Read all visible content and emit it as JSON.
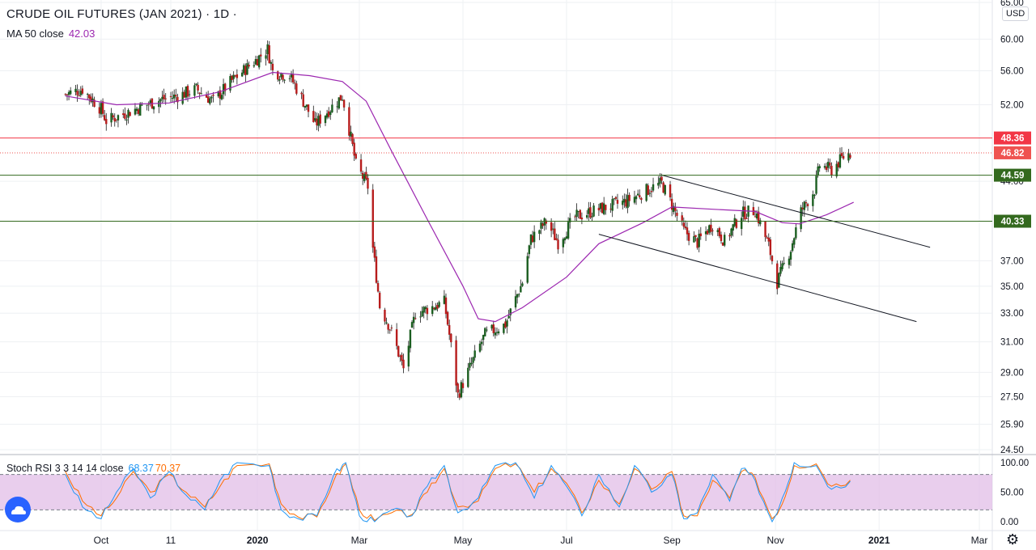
{
  "header": {
    "symbol_title": "CRUDE OIL FUTURES (JAN 2021)",
    "interval": "1D",
    "ma_label": "MA 50 close",
    "ma_value": "42.03",
    "rsi_label": "Stoch RSI 3 3 14 14 close",
    "rsi_k": "68.37",
    "rsi_d": "70.37",
    "currency": "USD"
  },
  "chart_data": [
    {
      "type": "candlestick",
      "x_tick_labels": [
        "Oct",
        "11",
        "2020",
        "Mar",
        "May",
        "Jul",
        "Sep",
        "Nov",
        "2021",
        "Mar"
      ],
      "y_tick_labels": [
        "65.00",
        "60.00",
        "56.00",
        "52.00",
        "44.00",
        "37.00",
        "35.00",
        "33.00",
        "31.00",
        "29.00",
        "27.50",
        "25.90",
        "24.50"
      ],
      "ylim": [
        24.5,
        65.0
      ],
      "scale": "log",
      "price_levels": [
        {
          "label": "48.36",
          "value": 48.36,
          "color": "#f23645",
          "style": "solid"
        },
        {
          "label": "46.82",
          "value": 46.82,
          "color": "#ef5350",
          "style": "dotted"
        },
        {
          "label": "44.59",
          "value": 44.59,
          "color": "#33691e",
          "style": "solid"
        },
        {
          "label": "40.33",
          "value": 40.33,
          "color": "#33691e",
          "style": "solid"
        }
      ],
      "close_path": [
        [
          "2019-09-10",
          53.2
        ],
        [
          "2019-09-20",
          53.8
        ],
        [
          "2019-10-01",
          51.5
        ],
        [
          "2019-10-04",
          50.2
        ],
        [
          "2019-10-15",
          51.0
        ],
        [
          "2019-10-25",
          51.8
        ],
        [
          "2019-11-05",
          52.6
        ],
        [
          "2019-11-15",
          53.0
        ],
        [
          "2019-11-26",
          53.8
        ],
        [
          "2019-12-06",
          52.4
        ],
        [
          "2019-12-16",
          54.6
        ],
        [
          "2019-12-31",
          57.3
        ],
        [
          "2020-01-07",
          58.7
        ],
        [
          "2020-01-10",
          55.9
        ],
        [
          "2020-01-20",
          55.4
        ],
        [
          "2020-01-28",
          52.4
        ],
        [
          "2020-02-04",
          49.8
        ],
        [
          "2020-02-14",
          51.8
        ],
        [
          "2020-02-20",
          53.0
        ],
        [
          "2020-02-28",
          45.6
        ],
        [
          "2020-03-06",
          43.5
        ],
        [
          "2020-03-09",
          38.0
        ],
        [
          "2020-03-13",
          33.5
        ],
        [
          "2020-03-19",
          32.0
        ],
        [
          "2020-03-27",
          29.2
        ],
        [
          "2020-04-03",
          33.0
        ],
        [
          "2020-04-14",
          33.5
        ],
        [
          "2020-04-20",
          33.8
        ],
        [
          "2020-04-28",
          27.6
        ],
        [
          "2020-05-05",
          29.3
        ],
        [
          "2020-05-14",
          31.5
        ],
        [
          "2020-05-26",
          32.2
        ],
        [
          "2020-06-05",
          35.3
        ],
        [
          "2020-06-10",
          38.8
        ],
        [
          "2020-06-19",
          40.3
        ],
        [
          "2020-06-26",
          38.5
        ],
        [
          "2020-07-06",
          40.7
        ],
        [
          "2020-07-20",
          41.4
        ],
        [
          "2020-08-05",
          42.1
        ],
        [
          "2020-08-19",
          43.3
        ],
        [
          "2020-08-26",
          43.8
        ],
        [
          "2020-09-08",
          39.5
        ],
        [
          "2020-09-16",
          38.5
        ],
        [
          "2020-09-25",
          40.1
        ],
        [
          "2020-10-02",
          38.6
        ],
        [
          "2020-10-12",
          41.0
        ],
        [
          "2020-10-20",
          41.3
        ],
        [
          "2020-10-28",
          38.2
        ],
        [
          "2020-11-02",
          35.3
        ],
        [
          "2020-11-10",
          38.0
        ],
        [
          "2020-11-16",
          41.2
        ],
        [
          "2020-11-24",
          43.2
        ],
        [
          "2020-11-27",
          45.6
        ],
        [
          "2020-12-04",
          45.1
        ],
        [
          "2020-12-11",
          46.4
        ],
        [
          "2020-12-15",
          46.8
        ]
      ],
      "ma50_path": [
        [
          "2019-09-10",
          53.0
        ],
        [
          "2019-10-10",
          52.0
        ],
        [
          "2019-11-10",
          52.2
        ],
        [
          "2019-12-10",
          53.5
        ],
        [
          "2020-01-10",
          55.8
        ],
        [
          "2020-02-01",
          55.4
        ],
        [
          "2020-02-20",
          54.7
        ],
        [
          "2020-03-05",
          52.4
        ],
        [
          "2020-03-20",
          47.0
        ],
        [
          "2020-04-10",
          40.5
        ],
        [
          "2020-05-01",
          35.0
        ],
        [
          "2020-05-10",
          32.6
        ],
        [
          "2020-05-20",
          32.4
        ],
        [
          "2020-06-05",
          33.4
        ],
        [
          "2020-07-01",
          35.7
        ],
        [
          "2020-07-20",
          38.4
        ],
        [
          "2020-08-15",
          40.2
        ],
        [
          "2020-09-01",
          41.6
        ],
        [
          "2020-09-25",
          41.4
        ],
        [
          "2020-10-20",
          41.2
        ],
        [
          "2020-11-05",
          40.2
        ],
        [
          "2020-11-15",
          40.1
        ],
        [
          "2020-12-01",
          40.9
        ],
        [
          "2020-12-17",
          42.03
        ]
      ],
      "trendlines": [
        {
          "from": [
            "2020-08-26",
            44.6
          ],
          "to": [
            "2021-01-31",
            38.1
          ]
        },
        {
          "from": [
            "2020-07-20",
            39.2
          ],
          "to": [
            "2021-01-23",
            32.4
          ]
        }
      ]
    },
    {
      "type": "line",
      "name": "Stoch RSI 3 3 14 14 close",
      "y_tick_labels": [
        "100.00",
        "50.00",
        "0.00"
      ],
      "ylim": [
        -5,
        105
      ],
      "upper_band": 80,
      "lower_band": 20,
      "band_color": "#e1bee7",
      "k_color": "#2196f3",
      "d_color": "#ff6d00",
      "k_path": [
        [
          "2019-09-10",
          80
        ],
        [
          "2019-09-20",
          25
        ],
        [
          "2019-10-01",
          5
        ],
        [
          "2019-10-10",
          50
        ],
        [
          "2019-10-20",
          90
        ],
        [
          "2019-10-30",
          40
        ],
        [
          "2019-11-10",
          85
        ],
        [
          "2019-11-20",
          45
        ],
        [
          "2019-12-01",
          20
        ],
        [
          "2019-12-10",
          70
        ],
        [
          "2019-12-20",
          100
        ],
        [
          "2020-01-08",
          95
        ],
        [
          "2020-01-15",
          20
        ],
        [
          "2020-01-25",
          5
        ],
        [
          "2020-02-05",
          10
        ],
        [
          "2020-02-15",
          80
        ],
        [
          "2020-02-22",
          100
        ],
        [
          "2020-03-01",
          10
        ],
        [
          "2020-03-10",
          0
        ],
        [
          "2020-03-20",
          20
        ],
        [
          "2020-04-01",
          10
        ],
        [
          "2020-04-10",
          60
        ],
        [
          "2020-04-20",
          95
        ],
        [
          "2020-04-28",
          15
        ],
        [
          "2020-05-10",
          40
        ],
        [
          "2020-05-20",
          95
        ],
        [
          "2020-06-01",
          100
        ],
        [
          "2020-06-12",
          40
        ],
        [
          "2020-06-22",
          95
        ],
        [
          "2020-07-01",
          60
        ],
        [
          "2020-07-10",
          10
        ],
        [
          "2020-07-20",
          80
        ],
        [
          "2020-08-01",
          25
        ],
        [
          "2020-08-10",
          95
        ],
        [
          "2020-08-20",
          50
        ],
        [
          "2020-09-01",
          80
        ],
        [
          "2020-09-08",
          5
        ],
        [
          "2020-09-16",
          15
        ],
        [
          "2020-09-25",
          80
        ],
        [
          "2020-10-05",
          35
        ],
        [
          "2020-10-12",
          90
        ],
        [
          "2020-10-20",
          70
        ],
        [
          "2020-10-30",
          0
        ],
        [
          "2020-11-05",
          40
        ],
        [
          "2020-11-12",
          100
        ],
        [
          "2020-11-25",
          95
        ],
        [
          "2020-12-04",
          55
        ],
        [
          "2020-12-15",
          68.37
        ]
      ],
      "d_path": [
        [
          "2019-09-10",
          85
        ],
        [
          "2019-09-20",
          35
        ],
        [
          "2019-10-01",
          10
        ],
        [
          "2019-10-10",
          40
        ],
        [
          "2019-10-20",
          85
        ],
        [
          "2019-10-30",
          50
        ],
        [
          "2019-11-10",
          80
        ],
        [
          "2019-11-20",
          50
        ],
        [
          "2019-12-01",
          25
        ],
        [
          "2019-12-10",
          60
        ],
        [
          "2019-12-20",
          95
        ],
        [
          "2020-01-08",
          98
        ],
        [
          "2020-01-15",
          30
        ],
        [
          "2020-01-25",
          8
        ],
        [
          "2020-02-05",
          8
        ],
        [
          "2020-02-15",
          70
        ],
        [
          "2020-02-22",
          98
        ],
        [
          "2020-03-01",
          20
        ],
        [
          "2020-03-10",
          2
        ],
        [
          "2020-03-20",
          15
        ],
        [
          "2020-04-01",
          12
        ],
        [
          "2020-04-10",
          50
        ],
        [
          "2020-04-20",
          90
        ],
        [
          "2020-04-28",
          25
        ],
        [
          "2020-05-10",
          35
        ],
        [
          "2020-05-20",
          90
        ],
        [
          "2020-06-01",
          98
        ],
        [
          "2020-06-12",
          50
        ],
        [
          "2020-06-22",
          90
        ],
        [
          "2020-07-01",
          65
        ],
        [
          "2020-07-10",
          15
        ],
        [
          "2020-07-20",
          70
        ],
        [
          "2020-08-01",
          30
        ],
        [
          "2020-08-10",
          90
        ],
        [
          "2020-08-20",
          55
        ],
        [
          "2020-09-01",
          85
        ],
        [
          "2020-09-08",
          10
        ],
        [
          "2020-09-16",
          10
        ],
        [
          "2020-09-25",
          70
        ],
        [
          "2020-10-05",
          40
        ],
        [
          "2020-10-12",
          85
        ],
        [
          "2020-10-20",
          75
        ],
        [
          "2020-10-30",
          5
        ],
        [
          "2020-11-05",
          30
        ],
        [
          "2020-11-12",
          95
        ],
        [
          "2020-11-25",
          98
        ],
        [
          "2020-12-04",
          60
        ],
        [
          "2020-12-15",
          70.37
        ]
      ]
    }
  ],
  "colors": {
    "up": "#26a69a",
    "up_body": "#1b5e20",
    "down": "#b71c1c",
    "ma": "#9c27b0",
    "grid": "#eef0f3",
    "axis_text": "#131722"
  }
}
